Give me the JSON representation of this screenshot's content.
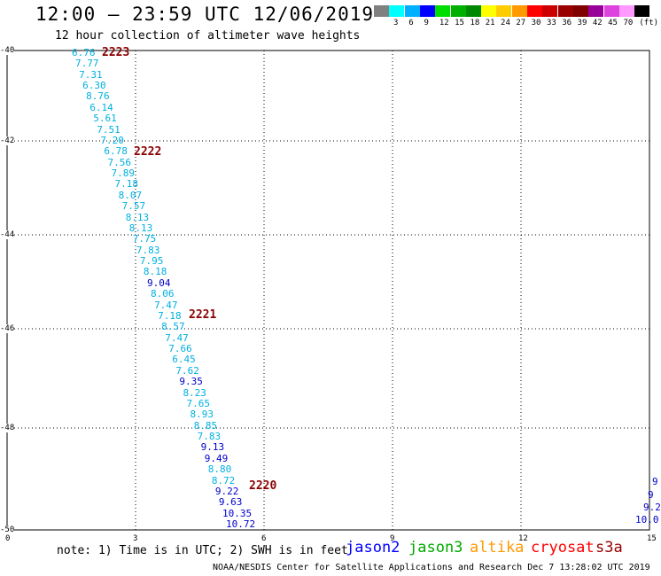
{
  "header": {
    "title": "12:00 – 23:59 UTC 12/06/2019",
    "subtitle": "12 hour collection of altimeter wave heights"
  },
  "legend": {
    "unit": "(ft)",
    "swatches": [
      {
        "color": "#808080",
        "label": ""
      },
      {
        "color": "#00ffff",
        "label": "3"
      },
      {
        "color": "#00b0ff",
        "label": "6"
      },
      {
        "color": "#0000ff",
        "label": "9"
      },
      {
        "color": "#00dd00",
        "label": "12"
      },
      {
        "color": "#00b000",
        "label": "15"
      },
      {
        "color": "#008800",
        "label": "18"
      },
      {
        "color": "#ffff00",
        "label": "21"
      },
      {
        "color": "#ffcc00",
        "label": "24"
      },
      {
        "color": "#ff9900",
        "label": "27"
      },
      {
        "color": "#ff0000",
        "label": "30"
      },
      {
        "color": "#cc0000",
        "label": "33"
      },
      {
        "color": "#990000",
        "label": "36"
      },
      {
        "color": "#800000",
        "label": "39"
      },
      {
        "color": "#990099",
        "label": "42"
      },
      {
        "color": "#dd44dd",
        "label": "45"
      },
      {
        "color": "#ff99ff",
        "label": "70"
      },
      {
        "color": "#000000",
        "label": ""
      }
    ]
  },
  "map": {
    "lat_ticks": [
      "-40",
      "-42",
      "-44",
      "-46",
      "-48",
      "-50"
    ],
    "lon_ticks": [
      "0",
      "3",
      "6",
      "9",
      "12",
      "15"
    ],
    "passes": [
      {
        "label": "2223"
      },
      {
        "label": "2222"
      },
      {
        "label": "2221"
      },
      {
        "label": "2220"
      }
    ],
    "points": [
      {
        "v": "6.76",
        "c": "#00b0e0"
      },
      {
        "v": "7.77",
        "c": "#00b0e0"
      },
      {
        "v": "7.31",
        "c": "#00b0e0"
      },
      {
        "v": "6.30",
        "c": "#00b0e0"
      },
      {
        "v": "8.76",
        "c": "#00b0e0"
      },
      {
        "v": "6.14",
        "c": "#00b0e0"
      },
      {
        "v": "5.61",
        "c": "#00b0e0"
      },
      {
        "v": "7.51",
        "c": "#00b0e0"
      },
      {
        "v": "7.20",
        "c": "#00b0e0"
      },
      {
        "v": "6.78",
        "c": "#00b0e0"
      },
      {
        "v": "7.56",
        "c": "#00b0e0"
      },
      {
        "v": "7.89",
        "c": "#00b0e0"
      },
      {
        "v": "7.18",
        "c": "#00b0e0"
      },
      {
        "v": "8.07",
        "c": "#00b0e0"
      },
      {
        "v": "7.57",
        "c": "#00b0e0"
      },
      {
        "v": "8.13",
        "c": "#00b0e0"
      },
      {
        "v": "8.13",
        "c": "#00b0e0"
      },
      {
        "v": "7.75",
        "c": "#00b0e0"
      },
      {
        "v": "7.83",
        "c": "#00b0e0"
      },
      {
        "v": "7.95",
        "c": "#00b0e0"
      },
      {
        "v": "8.18",
        "c": "#00b0e0"
      },
      {
        "v": "9.04",
        "c": "#0000cc"
      },
      {
        "v": "8.06",
        "c": "#00b0e0"
      },
      {
        "v": "7.47",
        "c": "#00b0e0"
      },
      {
        "v": "7.18",
        "c": "#00b0e0"
      },
      {
        "v": "8.57",
        "c": "#00b0e0"
      },
      {
        "v": "7.47",
        "c": "#00b0e0"
      },
      {
        "v": "7.66",
        "c": "#00b0e0"
      },
      {
        "v": "6.45",
        "c": "#00b0e0"
      },
      {
        "v": "7.62",
        "c": "#00b0e0"
      },
      {
        "v": "9.35",
        "c": "#0000cc"
      },
      {
        "v": "8.23",
        "c": "#00b0e0"
      },
      {
        "v": "7.65",
        "c": "#00b0e0"
      },
      {
        "v": "8.93",
        "c": "#00b0e0"
      },
      {
        "v": "8.85",
        "c": "#00b0e0"
      },
      {
        "v": "7.83",
        "c": "#00b0e0"
      },
      {
        "v": "9.13",
        "c": "#0000cc"
      },
      {
        "v": "9.49",
        "c": "#0000cc"
      },
      {
        "v": "8.80",
        "c": "#00b0e0"
      },
      {
        "v": "8.72",
        "c": "#00b0e0"
      },
      {
        "v": "9.22",
        "c": "#0000cc"
      },
      {
        "v": "9.63",
        "c": "#0000cc"
      },
      {
        "v": "10.35",
        "c": "#0000cc"
      },
      {
        "v": "10.72",
        "c": "#0000cc"
      }
    ],
    "edge_points": [
      {
        "v": "9",
        "c": "#0000cc"
      },
      {
        "v": "9",
        "c": "#0000cc"
      },
      {
        "v": "9.2",
        "c": "#0000cc"
      },
      {
        "v": "10.0",
        "c": "#0000cc"
      }
    ]
  },
  "footer": {
    "note": "note: 1) Time is in UTC; 2) SWH is in feet",
    "satellites": [
      {
        "name": "jason2",
        "color": "#0000ff"
      },
      {
        "name": "jason3",
        "color": "#00aa00"
      },
      {
        "name": "altika",
        "color": "#ff9900"
      },
      {
        "name": "cryosat",
        "color": "#ff0000"
      },
      {
        "name": "s3a",
        "color": "#990000"
      }
    ],
    "credit": "NOAA/NESDIS Center for Satellite Applications and Research   Dec  7 13:28:02 UTC 2019"
  }
}
